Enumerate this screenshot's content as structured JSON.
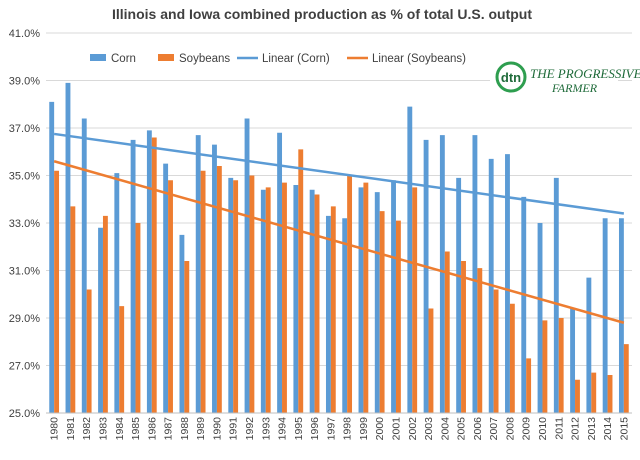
{
  "chart_data": {
    "type": "bar",
    "title": "Illinois and Iowa combined production as % of total U.S. output",
    "xlabel": "",
    "ylabel": "",
    "ylim": [
      25.0,
      41.0
    ],
    "yticks": [
      "25.0%",
      "27.0%",
      "29.0%",
      "31.0%",
      "33.0%",
      "35.0%",
      "37.0%",
      "39.0%",
      "41.0%"
    ],
    "ytick_values": [
      25,
      27,
      29,
      31,
      33,
      35,
      37,
      39,
      41
    ],
    "grid": true,
    "legend_position": "top",
    "categories": [
      "1980",
      "1981",
      "1982",
      "1983",
      "1984",
      "1985",
      "1986",
      "1987",
      "1988",
      "1989",
      "1990",
      "1991",
      "1992",
      "1993",
      "1994",
      "1995",
      "1996",
      "1997",
      "1998",
      "1999",
      "2000",
      "2001",
      "2002",
      "2003",
      "2004",
      "2005",
      "2006",
      "2007",
      "2008",
      "2009",
      "2010",
      "2011",
      "2012",
      "2013",
      "2014",
      "2015"
    ],
    "series": [
      {
        "name": "Corn",
        "color": "#5b9bd5",
        "values": [
          38.1,
          38.9,
          37.4,
          32.8,
          35.1,
          36.5,
          36.9,
          35.5,
          32.5,
          36.7,
          36.3,
          34.9,
          37.4,
          34.4,
          36.8,
          34.6,
          34.4,
          33.3,
          33.2,
          34.5,
          34.3,
          34.8,
          37.9,
          36.5,
          36.7,
          34.9,
          36.7,
          35.7,
          35.9,
          34.1,
          33.0,
          34.9,
          29.4,
          30.7,
          33.2,
          33.2
        ]
      },
      {
        "name": "Soybeans",
        "color": "#ed7d31",
        "values": [
          35.2,
          33.7,
          30.2,
          33.3,
          29.5,
          33.0,
          36.6,
          34.8,
          31.4,
          35.2,
          35.4,
          34.8,
          35.0,
          34.5,
          34.7,
          36.1,
          34.2,
          33.7,
          35.0,
          34.7,
          33.5,
          33.1,
          34.5,
          29.4,
          31.8,
          31.4,
          31.1,
          30.2,
          29.6,
          27.3,
          28.9,
          29.0,
          26.4,
          26.7,
          26.6,
          27.9
        ]
      }
    ],
    "trendlines": [
      {
        "name": "Linear (Corn)",
        "color": "#5b9bd5",
        "start": 36.75,
        "end": 33.4
      },
      {
        "name": "Linear (Soybeans)",
        "color": "#ed7d31",
        "start": 35.6,
        "end": 28.8
      }
    ]
  },
  "logo": {
    "mark": "dtn",
    "line1": "THE PROGRESSIVE",
    "line2": "FARMER"
  }
}
